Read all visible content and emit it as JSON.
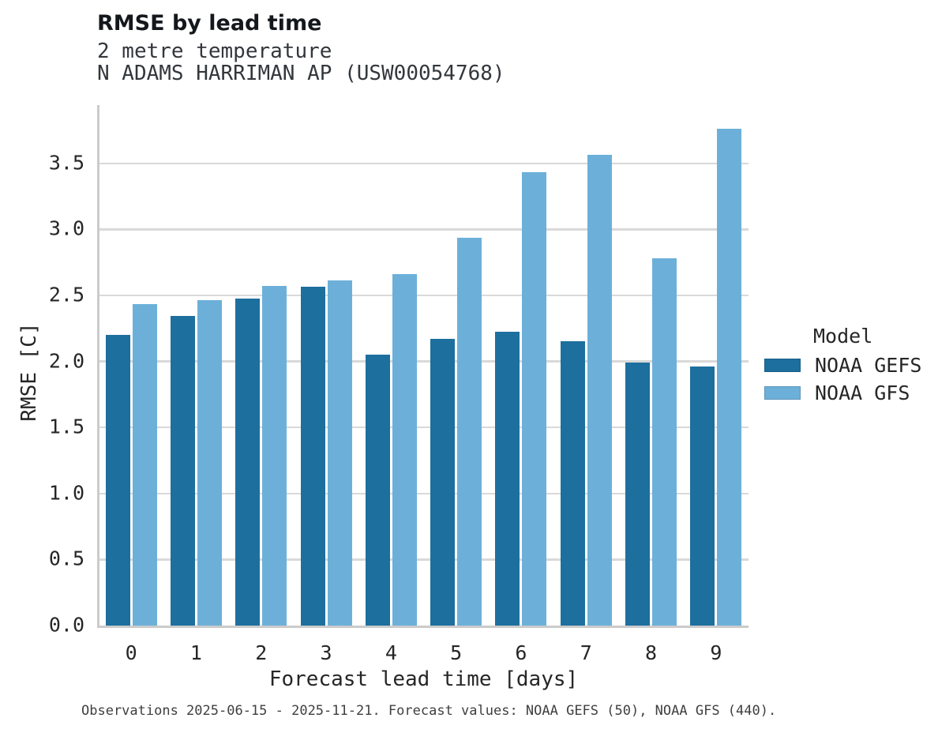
{
  "header": {
    "title": "RMSE by lead time",
    "subtitle_line1": "2 metre temperature",
    "subtitle_line2": "N ADAMS HARRIMAN AP (USW00054768)"
  },
  "chart_data": {
    "type": "bar",
    "categories": [
      "0",
      "1",
      "2",
      "3",
      "4",
      "5",
      "6",
      "7",
      "8",
      "9"
    ],
    "series": [
      {
        "name": "NOAA GEFS",
        "color": "#1d6f9e",
        "values": [
          2.21,
          2.35,
          2.48,
          2.57,
          2.06,
          2.18,
          2.23,
          2.16,
          2.0,
          1.97
        ]
      },
      {
        "name": "NOAA GFS",
        "color": "#6cb0d9",
        "values": [
          2.44,
          2.47,
          2.58,
          2.62,
          2.67,
          2.94,
          3.44,
          3.57,
          2.79,
          3.77
        ]
      }
    ],
    "title": "RMSE by lead time",
    "xlabel": "Forecast lead time [days]",
    "ylabel": "RMSE [C]",
    "ylim": [
      0,
      3.87
    ],
    "y_ticks": [
      0.0,
      0.5,
      1.0,
      1.5,
      2.0,
      2.5,
      3.0,
      3.5
    ],
    "y_tick_labels": [
      "0.0",
      "0.5",
      "1.0",
      "1.5",
      "2.0",
      "2.5",
      "3.0",
      "3.5"
    ],
    "grid": "horizontal",
    "legend_position": "right"
  },
  "legend": {
    "title": "Model"
  },
  "footer": {
    "caption": "Observations 2025-06-15 - 2025-11-21. Forecast values: NOAA GEFS (50), NOAA GFS (440)."
  },
  "colors": {
    "gefs_bar": "#1d6f9e",
    "gfs_bar": "#6cb0d9",
    "gridline": "#d9d9d9",
    "spine": "#cbcbcb",
    "text": "#262626",
    "subtitle_text": "#33373c",
    "footer_text": "#3f3f3f"
  }
}
